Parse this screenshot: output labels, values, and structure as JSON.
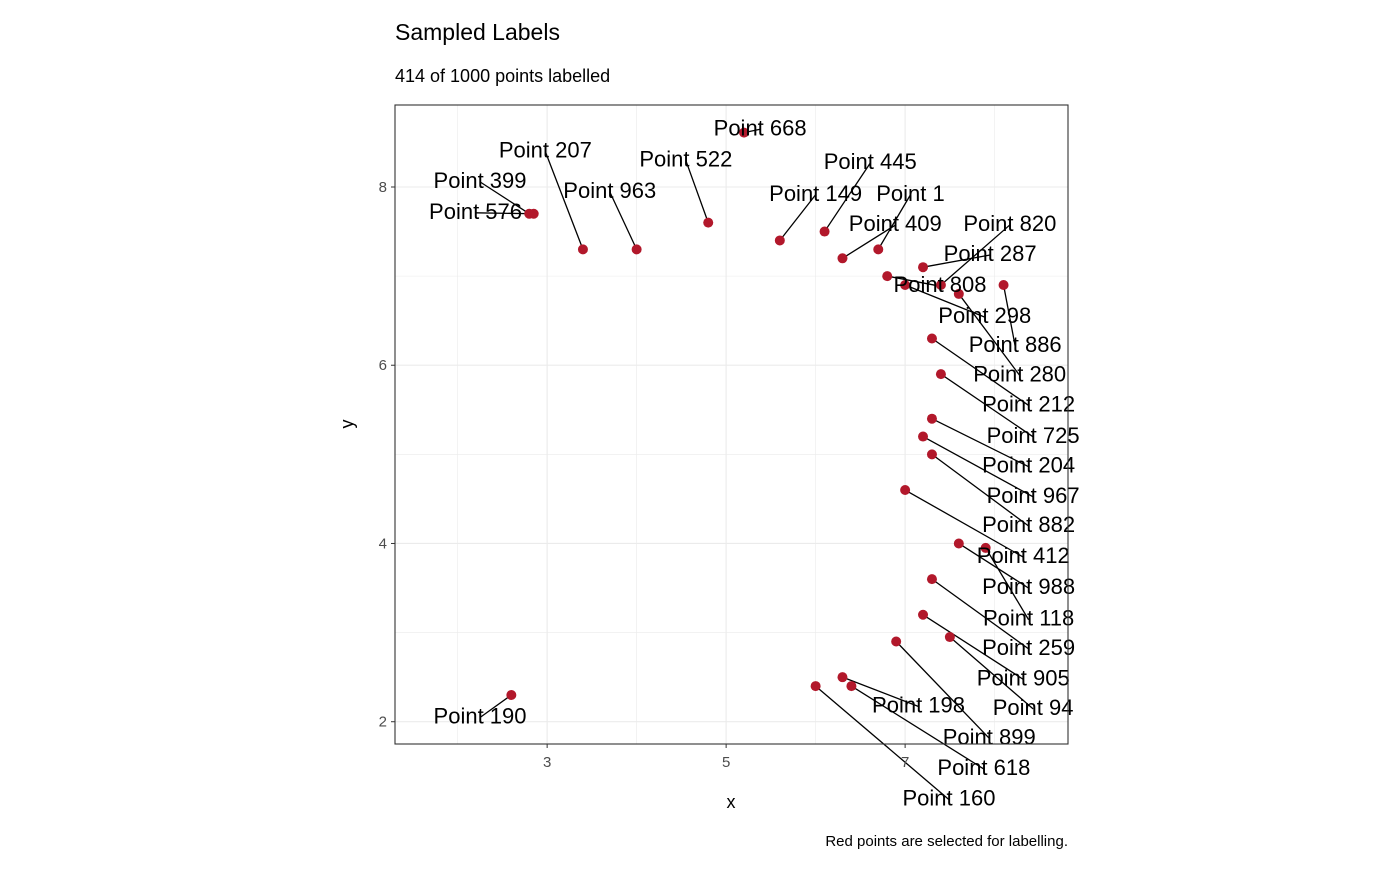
{
  "chart_data": {
    "type": "scatter",
    "title": "Sampled Labels",
    "subtitle": "414 of 1000 points labelled",
    "caption": "Red points are selected for labelling.",
    "xlabel": "x",
    "ylabel": "y",
    "xlim": [
      1.3,
      8.82
    ],
    "ylim": [
      1.75,
      8.92
    ],
    "x_ticks": [
      "3",
      "5",
      "7"
    ],
    "y_ticks": [
      "2",
      "4",
      "6",
      "8"
    ],
    "grid": true,
    "point_color": "#b2182b",
    "label_color": "#000000",
    "labelled_points": [
      {
        "label": "Point 668",
        "x": 5.2,
        "y": 8.61,
        "label_x": 5.38,
        "label_y": 8.67
      },
      {
        "label": "Point 522",
        "x": 4.8,
        "y": 7.6,
        "label_x": 4.55,
        "label_y": 8.42
      },
      {
        "label": "Point 445",
        "x": 6.1,
        "y": 7.5,
        "label_x": 6.61,
        "label_y": 8.29
      },
      {
        "label": "Point 1",
        "x": 6.7,
        "y": 7.3,
        "label_x": 7.06,
        "label_y": 8.07
      },
      {
        "label": "Point 149",
        "x": 5.6,
        "y": 7.4,
        "label_x": 6.0,
        "label_y": 8.07
      },
      {
        "label": "Point 399",
        "x": 2.8,
        "y": 7.7,
        "label_x": 2.25,
        "label_y": 8.08
      },
      {
        "label": "Point 207",
        "x": 3.4,
        "y": 7.3,
        "label_x": 2.98,
        "label_y": 8.15
      },
      {
        "label": "Point 963",
        "x": 4.0,
        "y": 7.3,
        "label_x": 3.7,
        "label_y": 8.17
      },
      {
        "label": "Point 409",
        "x": 6.3,
        "y": 7.2,
        "label_x": 6.89,
        "label_y": 7.83
      },
      {
        "label": "Point 287",
        "x": 7.2,
        "y": 7.1,
        "label_x": 7.95,
        "label_y": 7.63
      },
      {
        "label": "Point 808",
        "x": 6.8,
        "y": 7.0,
        "label_x": 7.39,
        "label_y": 7.65
      },
      {
        "label": "Point 820",
        "x": 7.4,
        "y": 6.9,
        "label_x": 8.17,
        "label_y": 7.26
      },
      {
        "label": "Point 298",
        "x": 7.0,
        "y": 6.9,
        "label_x": 7.89,
        "label_y": 7.37
      },
      {
        "label": "Point 886",
        "x": 8.1,
        "y": 6.9,
        "label_x": 8.23,
        "label_y": 7.01
      },
      {
        "label": "Point 280",
        "x": 7.6,
        "y": 6.8,
        "label_x": 8.28,
        "label_y": 6.75
      },
      {
        "label": "Point 212",
        "x": 7.3,
        "y": 6.3,
        "label_x": 8.38,
        "label_y": 6.48
      },
      {
        "label": "Point 725",
        "x": 7.4,
        "y": 5.9,
        "label_x": 8.43,
        "label_y": 5.96
      },
      {
        "label": "Point 204",
        "x": 7.3,
        "y": 5.4,
        "label_x": 8.38,
        "label_y": 5.49
      },
      {
        "label": "Point 967",
        "x": 7.2,
        "y": 5.2,
        "label_x": 8.43,
        "label_y": 5.32
      },
      {
        "label": "Point 882",
        "x": 7.3,
        "y": 5.0,
        "label_x": 8.38,
        "label_y": 5.06
      },
      {
        "label": "Point 412",
        "x": 7.0,
        "y": 4.6,
        "label_x": 8.32,
        "label_y": 4.61
      },
      {
        "label": "Point 988",
        "x": 7.6,
        "y": 4.0,
        "label_x": 8.38,
        "label_y": 4.06
      },
      {
        "label": "Point 118",
        "x": 7.9,
        "y": 3.95,
        "label_x": 8.38,
        "label_y": 3.84
      },
      {
        "label": "Point 259",
        "x": 7.3,
        "y": 3.6,
        "label_x": 8.38,
        "label_y": 3.58
      },
      {
        "label": "Point 905",
        "x": 7.2,
        "y": 3.2,
        "label_x": 8.32,
        "label_y": 3.07
      },
      {
        "label": "Point 94",
        "x": 7.5,
        "y": 2.95,
        "label_x": 8.43,
        "label_y": 2.84
      },
      {
        "label": "Point 899",
        "x": 6.9,
        "y": 2.9,
        "label_x": 7.94,
        "label_y": 2.61
      },
      {
        "label": "Point 618",
        "x": 6.4,
        "y": 2.4,
        "label_x": 7.88,
        "label_y": 2.4
      },
      {
        "label": "Point 198",
        "x": 6.3,
        "y": 2.5,
        "label_x": 7.15,
        "label_y": 2.16
      },
      {
        "label": "Point 160",
        "x": 6.0,
        "y": 2.4,
        "label_x": 7.49,
        "label_y": 1.99
      },
      {
        "label": "Point 190",
        "x": 2.6,
        "y": 2.3,
        "label_x": 2.25,
        "label_y": 2.07
      },
      {
        "label": "Point 576",
        "x": 2.85,
        "y": 7.7,
        "label_x": 2.2,
        "label_y": 7.8
      }
    ]
  }
}
